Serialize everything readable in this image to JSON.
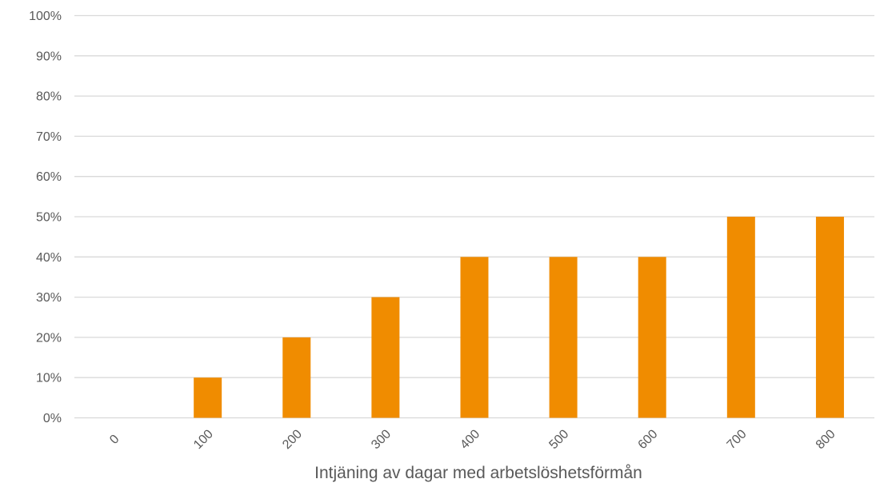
{
  "chart_data": {
    "type": "bar",
    "categories": [
      "0",
      "100",
      "200",
      "300",
      "400",
      "500",
      "600",
      "700",
      "800"
    ],
    "series": [
      {
        "values": [
          0,
          10,
          20,
          30,
          40,
          40,
          40,
          50,
          50
        ]
      }
    ],
    "xlabel": "Intjäning av dagar med arbetslöshetsförmån",
    "ylabel": "",
    "ylim": [
      0,
      100
    ],
    "y_ticks": [
      "0%",
      "10%",
      "20%",
      "30%",
      "40%",
      "50%",
      "60%",
      "70%",
      "80%",
      "90%",
      "100%"
    ],
    "y_unit": "%",
    "grid": true,
    "legend": "none",
    "bar_color": "#f08c00"
  }
}
